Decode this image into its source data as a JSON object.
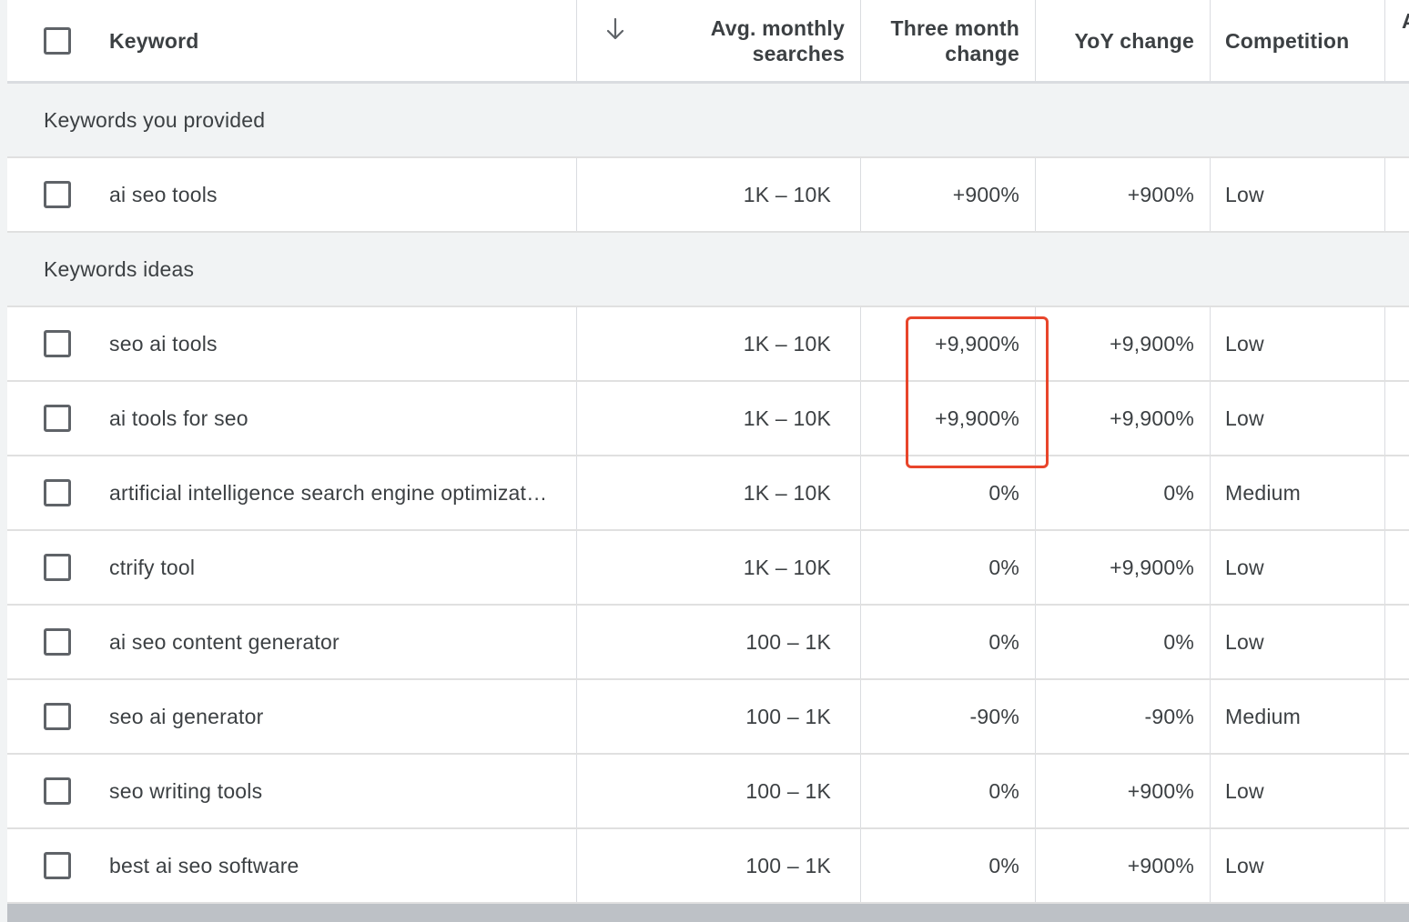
{
  "header": {
    "keyword": "Keyword",
    "avg_line1": "Avg. monthly",
    "avg_line2": "searches",
    "three_line1": "Three month",
    "three_line2": "change",
    "yoy": "YoY change",
    "competition": "Competition",
    "next_col_partial": "A",
    "sort_icon": "arrow-down-icon"
  },
  "sections": {
    "provided": "Keywords you provided",
    "ideas": "Keywords ideas"
  },
  "provided_rows": [
    {
      "keyword": "ai seo tools",
      "avg": "1K – 10K",
      "three": "+900%",
      "yoy": "+900%",
      "competition": "Low"
    }
  ],
  "idea_rows": [
    {
      "keyword": "seo ai tools",
      "avg": "1K – 10K",
      "three": "+9,900%",
      "yoy": "+9,900%",
      "competition": "Low"
    },
    {
      "keyword": "ai tools for seo",
      "avg": "1K – 10K",
      "three": "+9,900%",
      "yoy": "+9,900%",
      "competition": "Low"
    },
    {
      "keyword": "artificial intelligence search engine optimizat…",
      "avg": "1K – 10K",
      "three": "0%",
      "yoy": "0%",
      "competition": "Medium"
    },
    {
      "keyword": "ctrify tool",
      "avg": "1K – 10K",
      "three": "0%",
      "yoy": "+9,900%",
      "competition": "Low"
    },
    {
      "keyword": "ai seo content generator",
      "avg": "100 – 1K",
      "three": "0%",
      "yoy": "0%",
      "competition": "Low"
    },
    {
      "keyword": "seo ai generator",
      "avg": "100 – 1K",
      "three": "-90%",
      "yoy": "-90%",
      "competition": "Medium"
    },
    {
      "keyword": "seo writing tools",
      "avg": "100 – 1K",
      "three": "0%",
      "yoy": "+900%",
      "competition": "Low"
    },
    {
      "keyword": "best ai seo software",
      "avg": "100 – 1K",
      "three": "0%",
      "yoy": "+900%",
      "competition": "Low"
    }
  ],
  "colors": {
    "highlight": "#e8452b",
    "section_bg": "#f1f3f4",
    "text": "#3c4043"
  }
}
